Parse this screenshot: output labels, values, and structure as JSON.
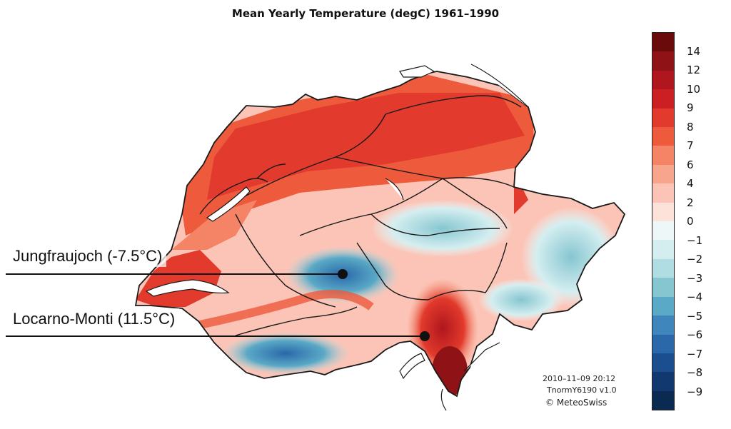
{
  "title": "Mean Yearly Temperature (degC)  1961–1990",
  "legend": {
    "labels": [
      "14",
      "12",
      "10",
      "9",
      "8",
      "7",
      "6",
      "4",
      "2",
      "0",
      "−1",
      "−2",
      "−3",
      "−4",
      "−5",
      "−6",
      "−7",
      "−8",
      "−9"
    ],
    "colors": [
      "#6b0a0a",
      "#8e1216",
      "#b0161d",
      "#cc1f24",
      "#e23a2c",
      "#ee5a3c",
      "#f58466",
      "#f8a58e",
      "#fbc4b6",
      "#fde2da",
      "#eef7f8",
      "#d4eef0",
      "#b0dde2",
      "#86c6d0",
      "#5aa9c6",
      "#3f86bd",
      "#2a68aa",
      "#1b4e8f",
      "#113970",
      "#0b2a52"
    ]
  },
  "annotations": [
    {
      "label": "Jungfraujoch (-7.5°C)",
      "station": "Jungfraujoch",
      "temperature_c": -7.5
    },
    {
      "label": "Locarno-Monti (11.5°C)",
      "station": "Locarno-Monti",
      "temperature_c": 11.5
    }
  ],
  "credits": {
    "timestamp": "2010–11–09 20:12",
    "product": "TnormY6190 v1.0",
    "copyright": "© MeteoSwiss"
  }
}
